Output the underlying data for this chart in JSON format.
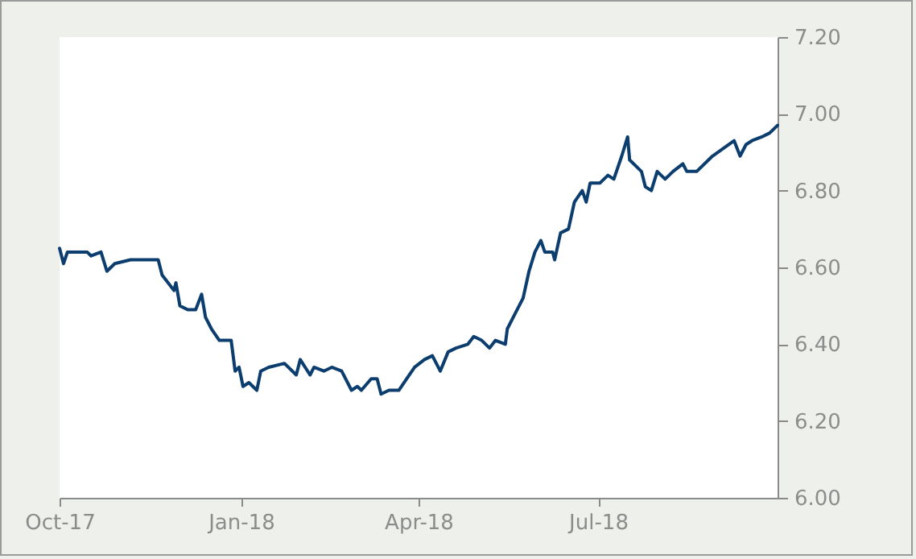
{
  "chart_data": {
    "type": "line",
    "x": [
      "2017-10-01",
      "2017-10-03",
      "2017-10-05",
      "2017-10-10",
      "2017-10-15",
      "2017-10-17",
      "2017-10-22",
      "2017-10-25",
      "2017-10-29",
      "2017-11-06",
      "2017-11-14",
      "2017-11-20",
      "2017-11-22",
      "2017-11-25",
      "2017-11-28",
      "2017-11-29",
      "2017-12-01",
      "2017-12-05",
      "2017-12-09",
      "2017-12-12",
      "2017-12-14",
      "2017-12-17",
      "2017-12-21",
      "2017-12-27",
      "2017-12-29",
      "2017-12-31",
      "2018-01-02",
      "2018-01-05",
      "2018-01-09",
      "2018-01-11",
      "2018-01-15",
      "2018-01-23",
      "2018-01-29",
      "2018-01-31",
      "2018-02-05",
      "2018-02-07",
      "2018-02-12",
      "2018-02-16",
      "2018-02-21",
      "2018-02-26",
      "2018-03-01",
      "2018-03-03",
      "2018-03-08",
      "2018-03-11",
      "2018-03-13",
      "2018-03-17",
      "2018-03-22",
      "2018-03-26",
      "2018-03-30",
      "2018-04-04",
      "2018-04-08",
      "2018-04-12",
      "2018-04-16",
      "2018-04-20",
      "2018-04-26",
      "2018-04-29",
      "2018-05-03",
      "2018-05-07",
      "2018-05-10",
      "2018-05-15",
      "2018-05-16",
      "2018-05-20",
      "2018-05-24",
      "2018-05-27",
      "2018-05-30",
      "2018-06-02",
      "2018-06-04",
      "2018-06-08",
      "2018-06-09",
      "2018-06-12",
      "2018-06-16",
      "2018-06-19",
      "2018-06-23",
      "2018-06-25",
      "2018-06-27",
      "2018-07-02",
      "2018-07-06",
      "2018-07-09",
      "2018-07-13",
      "2018-07-16",
      "2018-07-17",
      "2018-07-23",
      "2018-07-25",
      "2018-07-28",
      "2018-07-31",
      "2018-08-04",
      "2018-08-08",
      "2018-08-13",
      "2018-08-15",
      "2018-08-20",
      "2018-08-28",
      "2018-09-08",
      "2018-09-11",
      "2018-09-14",
      "2018-09-17",
      "2018-09-22",
      "2018-09-26",
      "2018-09-30"
    ],
    "series": [
      {
        "color": "#0b3d6e",
        "values": [
          6.65,
          6.61,
          6.64,
          6.64,
          6.64,
          6.63,
          6.64,
          6.59,
          6.61,
          6.62,
          6.62,
          6.62,
          6.58,
          6.56,
          6.54,
          6.56,
          6.5,
          6.49,
          6.49,
          6.53,
          6.47,
          6.44,
          6.41,
          6.41,
          6.33,
          6.34,
          6.29,
          6.3,
          6.28,
          6.33,
          6.34,
          6.35,
          6.32,
          6.36,
          6.32,
          6.34,
          6.33,
          6.34,
          6.33,
          6.28,
          6.29,
          6.28,
          6.31,
          6.31,
          6.27,
          6.28,
          6.28,
          6.31,
          6.34,
          6.36,
          6.37,
          6.33,
          6.38,
          6.39,
          6.4,
          6.42,
          6.41,
          6.39,
          6.41,
          6.4,
          6.44,
          6.48,
          6.52,
          6.59,
          6.64,
          6.67,
          6.64,
          6.64,
          6.62,
          6.69,
          6.7,
          6.77,
          6.8,
          6.77,
          6.82,
          6.82,
          6.84,
          6.83,
          6.89,
          6.94,
          6.88,
          6.85,
          6.81,
          6.8,
          6.85,
          6.83,
          6.85,
          6.87,
          6.85,
          6.85,
          6.89,
          6.93,
          6.89,
          6.92,
          6.93,
          6.94,
          6.95,
          6.97
        ]
      }
    ],
    "xlim": [
      "2017-10-01",
      "2018-09-30"
    ],
    "xticks": [
      {
        "value": "2017-10-01",
        "label": "Oct-17"
      },
      {
        "value": "2018-01-01",
        "label": "Jan-18"
      },
      {
        "value": "2018-04-01",
        "label": "Apr-18"
      },
      {
        "value": "2018-07-01",
        "label": "Jul-18"
      }
    ],
    "ylim": [
      6.0,
      7.2
    ],
    "yticks": [
      {
        "value": 6.0,
        "label": "6.00"
      },
      {
        "value": 6.2,
        "label": "6.20"
      },
      {
        "value": 6.4,
        "label": "6.40"
      },
      {
        "value": 6.6,
        "label": "6.60"
      },
      {
        "value": 6.8,
        "label": "6.80"
      },
      {
        "value": 7.0,
        "label": "7.00"
      },
      {
        "value": 7.2,
        "label": "7.20"
      }
    ]
  }
}
